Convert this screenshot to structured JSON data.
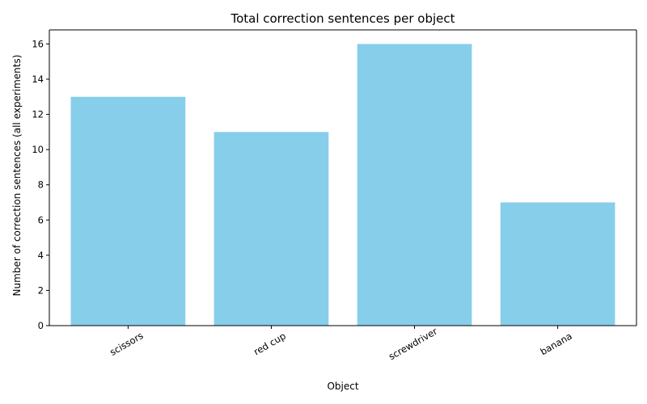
{
  "chart_data": {
    "type": "bar",
    "title": "Total correction sentences per object",
    "xlabel": "Object",
    "ylabel": "Number of correction sentences (all experiments)",
    "categories": [
      "scissors",
      "red cup",
      "screwdriver",
      "banana"
    ],
    "values": [
      13,
      11,
      16,
      7
    ],
    "ylim": [
      0,
      16.8
    ],
    "yticks": [
      0,
      2,
      4,
      6,
      8,
      10,
      12,
      14,
      16
    ],
    "bar_color": "#87ceeb",
    "grid": false,
    "legend": "none",
    "xtick_rotation": 30
  }
}
